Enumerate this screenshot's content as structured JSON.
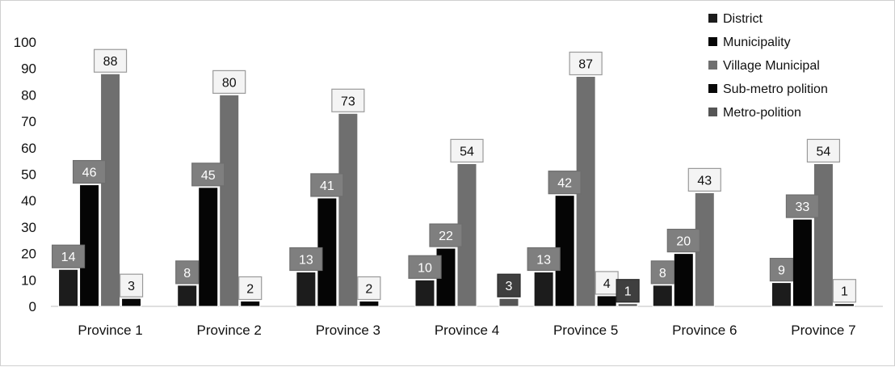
{
  "chart_data": {
    "type": "bar",
    "title": "",
    "xlabel": "",
    "ylabel": "",
    "ylim": [
      0,
      100
    ],
    "yticks": [
      "0",
      "10",
      "20",
      "30",
      "40",
      "50",
      "60",
      "70",
      "80",
      "90",
      "100"
    ],
    "categories": [
      "Province 1",
      "Province 2",
      "Province 3",
      "Province 4",
      "Province 5",
      "Province 6",
      "Province 7"
    ],
    "legend_position": "top-right",
    "series": [
      {
        "name": "District",
        "color": "#1c1c1c",
        "values": [
          14,
          8,
          13,
          10,
          13,
          8,
          9
        ],
        "labels": [
          "14",
          "8",
          "13",
          "10",
          "13",
          "8",
          "9"
        ]
      },
      {
        "name": "Municipality",
        "color": "#050505",
        "values": [
          46,
          45,
          41,
          22,
          42,
          20,
          33
        ],
        "labels": [
          "46",
          "45",
          "41",
          "22",
          "42",
          "20",
          "33"
        ]
      },
      {
        "name": "Village Municipal",
        "color": "#6f6f6f",
        "values": [
          88,
          80,
          73,
          54,
          87,
          43,
          54
        ],
        "labels": [
          "88",
          "80",
          "73",
          "54",
          "87",
          "43",
          "54"
        ]
      },
      {
        "name": "Sub-metro polition",
        "color": "#080808",
        "values": [
          3,
          2,
          2,
          0,
          4,
          0,
          1
        ],
        "labels": [
          "3",
          "2",
          "2",
          "",
          "4",
          "",
          "1"
        ]
      },
      {
        "name": "Metro-polition",
        "color": "#555555",
        "values": [
          0,
          0,
          0,
          3,
          1,
          0,
          0
        ],
        "labels": [
          "",
          "",
          "",
          "3",
          "1",
          "",
          ""
        ]
      }
    ],
    "grid": false
  }
}
